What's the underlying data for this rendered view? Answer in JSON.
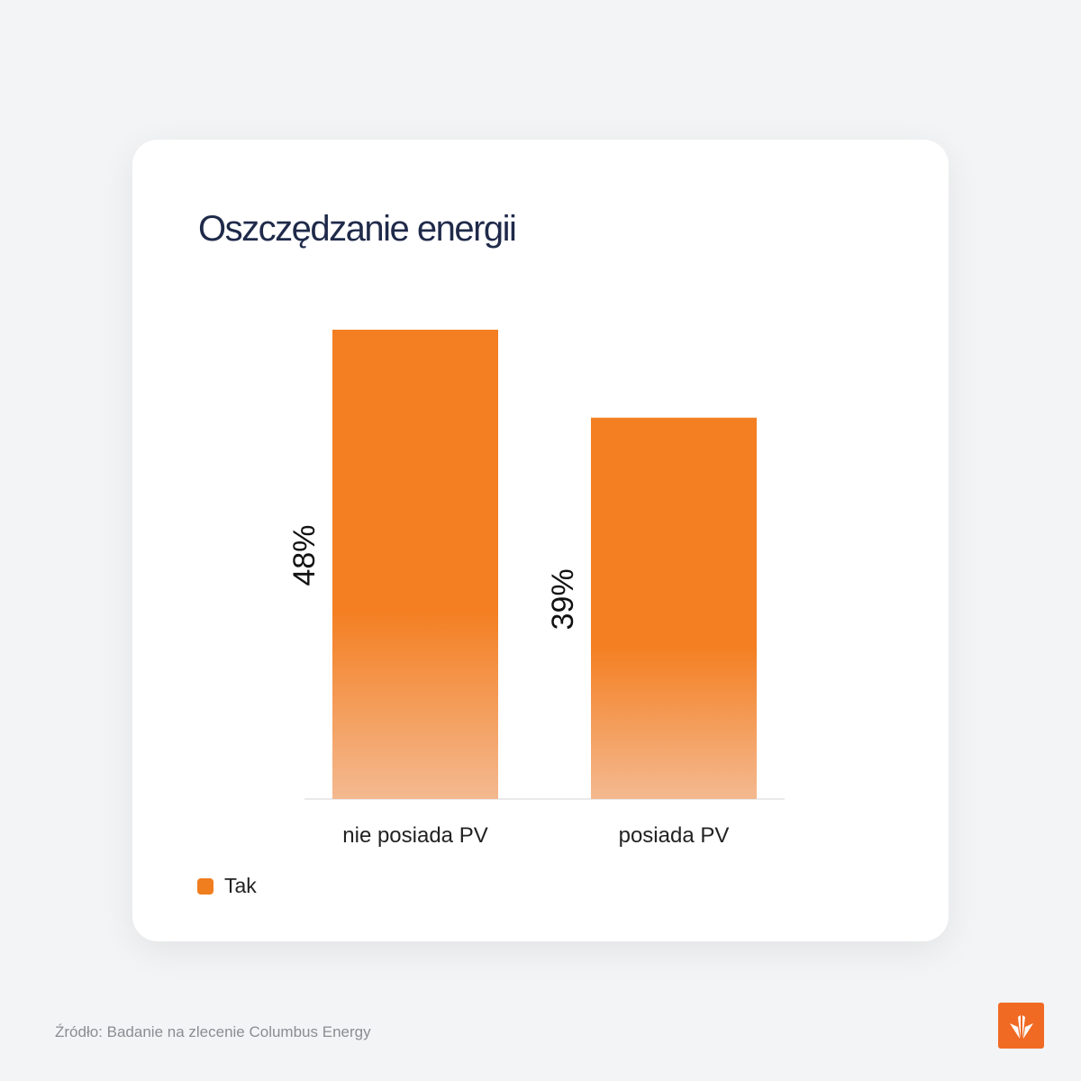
{
  "chart_data": {
    "type": "bar",
    "title": "Oszczędzanie energii",
    "categories": [
      "nie posiada PV",
      "posiada PV"
    ],
    "series": [
      {
        "name": "Tak",
        "values": [
          48,
          39
        ],
        "color": "#f47f22"
      }
    ],
    "value_labels": [
      "48%",
      "39%"
    ],
    "xlabel": "",
    "ylabel": "",
    "ylim": [
      0,
      48
    ],
    "grid": false,
    "legend": "bottom-left"
  },
  "source": "Źródło: Badanie na zlecenie Columbus Energy",
  "logo": {
    "icon": "columbus-energy-logo",
    "color": "#f06a24"
  }
}
